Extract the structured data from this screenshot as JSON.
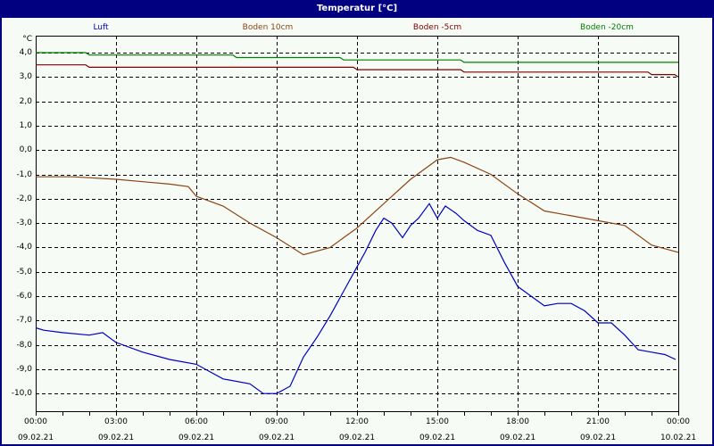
{
  "window": {
    "title": "Temperatur [°C]"
  },
  "chart_data": {
    "type": "line",
    "title": "Temperatur [°C]",
    "ylabel": "°C",
    "xlabel": "",
    "ylim": [
      -10.7,
      4.7
    ],
    "grid": true,
    "legend_position": "top",
    "y_ticks": [
      "4,0",
      "3,0",
      "2,0",
      "1,0",
      "0,0",
      "-1,0",
      "-2,0",
      "-3,0",
      "-4,0",
      "-5,0",
      "-6,0",
      "-7,0",
      "-8,0",
      "-9,0",
      "-10,0"
    ],
    "x_ticks": [
      {
        "time": "00:00",
        "date": "09.02.21"
      },
      {
        "time": "03:00",
        "date": "09.02.21"
      },
      {
        "time": "06:00",
        "date": "09.02.21"
      },
      {
        "time": "09:00",
        "date": "09.02.21"
      },
      {
        "time": "12:00",
        "date": "09.02.21"
      },
      {
        "time": "15:00",
        "date": "09.02.21"
      },
      {
        "time": "18:00",
        "date": "09.02.21"
      },
      {
        "time": "21:00",
        "date": "09.02.21"
      },
      {
        "time": "00:00",
        "date": "10.02.21"
      }
    ],
    "x_hours": [
      0,
      1,
      2,
      3,
      4,
      5,
      6,
      7,
      8,
      9,
      10,
      11,
      12,
      13,
      14,
      15,
      16,
      17,
      18,
      19,
      20,
      21,
      22,
      23,
      24
    ],
    "series": [
      {
        "name": "Luft",
        "color": "#0000c0",
        "x": [
          0,
          0.3,
          1,
          2,
          2.5,
          3,
          4,
          5,
          6,
          6.5,
          7,
          8,
          8.5,
          9,
          9.5,
          10,
          10.5,
          11,
          11.5,
          12,
          12.3,
          12.7,
          13,
          13.3,
          13.7,
          14,
          14.3,
          14.7,
          15,
          15.3,
          15.7,
          16,
          16.5,
          17,
          17.5,
          18,
          18.5,
          19,
          19.5,
          20,
          20.5,
          21,
          21.5,
          22,
          22.5,
          23,
          23.5,
          23.9
        ],
        "values": [
          -7.3,
          -7.4,
          -7.5,
          -7.6,
          -7.5,
          -7.9,
          -8.3,
          -8.6,
          -8.8,
          -9.1,
          -9.4,
          -9.6,
          -10.0,
          -10.0,
          -9.7,
          -8.5,
          -7.7,
          -6.8,
          -5.8,
          -4.8,
          -4.2,
          -3.3,
          -2.8,
          -3.0,
          -3.6,
          -3.1,
          -2.8,
          -2.2,
          -2.8,
          -2.3,
          -2.6,
          -2.9,
          -3.3,
          -3.5,
          -4.6,
          -5.6,
          -6.0,
          -6.4,
          -6.3,
          -6.3,
          -6.6,
          -7.1,
          -7.1,
          -7.6,
          -8.2,
          -8.3,
          -8.4,
          -8.6
        ]
      },
      {
        "name": "Boden 10cm",
        "color": "#8b4513",
        "x": [
          0,
          1.4,
          3,
          4,
          5,
          5.7,
          6,
          7,
          8,
          9,
          10,
          11,
          12,
          13,
          14,
          15,
          15.5,
          16,
          17,
          18,
          19,
          20,
          21,
          22,
          23,
          24
        ],
        "values": [
          -1.1,
          -1.1,
          -1.2,
          -1.3,
          -1.4,
          -1.5,
          -1.9,
          -2.3,
          -3.0,
          -3.6,
          -4.3,
          -4.0,
          -3.2,
          -2.2,
          -1.2,
          -0.4,
          -0.3,
          -0.5,
          -1.0,
          -1.8,
          -2.5,
          -2.7,
          -2.9,
          -3.1,
          -3.9,
          -4.2
        ]
      },
      {
        "name": "Boden -5cm",
        "color": "#800000",
        "x": [
          0,
          2,
          6,
          12,
          16,
          23,
          24
        ],
        "values": [
          3.5,
          3.4,
          3.4,
          3.3,
          3.2,
          3.1,
          3.0
        ]
      },
      {
        "name": "Boden -20cm",
        "color": "#008000",
        "x": [
          0,
          2,
          7.5,
          11.5,
          16,
          24
        ],
        "values": [
          4.0,
          3.9,
          3.8,
          3.7,
          3.6,
          3.6
        ]
      }
    ]
  },
  "legend": {
    "items": [
      {
        "label": "Luft",
        "color": "#0000c0"
      },
      {
        "label": "Boden 10cm",
        "color": "#8b4513"
      },
      {
        "label": "Boden -5cm",
        "color": "#800000"
      },
      {
        "label": "Boden -20cm",
        "color": "#008000"
      }
    ]
  }
}
